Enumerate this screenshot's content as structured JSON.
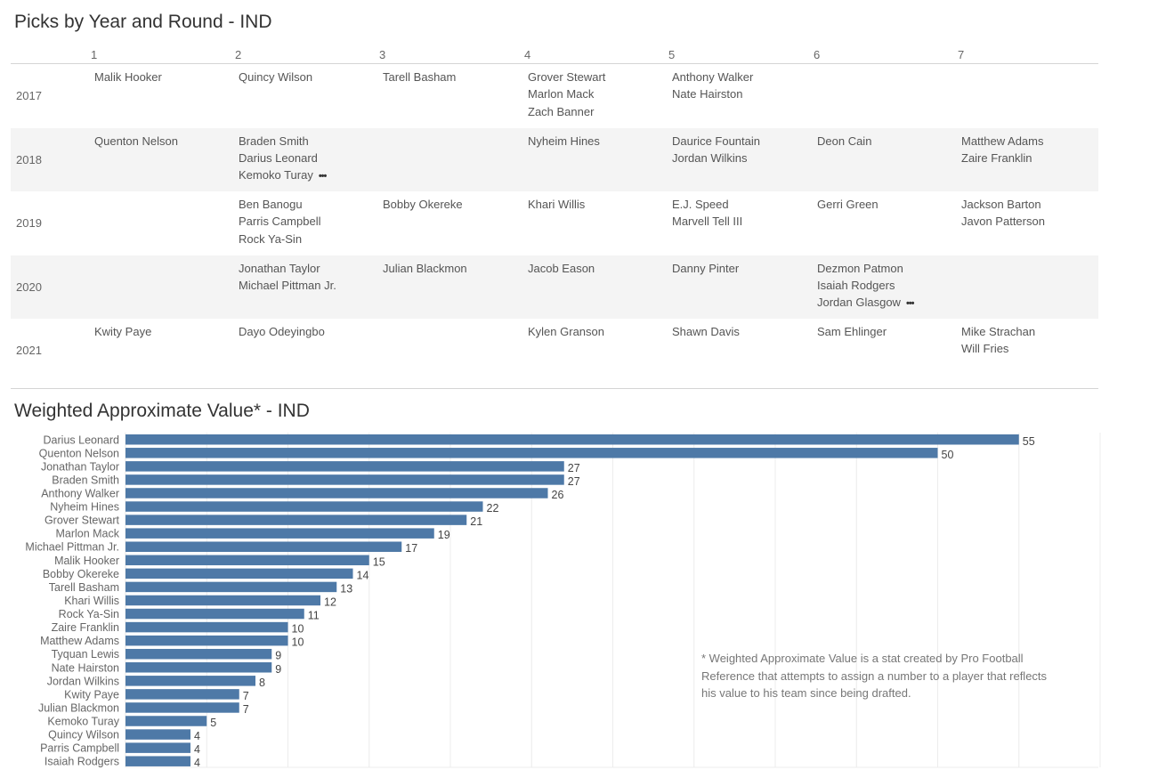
{
  "table": {
    "title": "Picks by Year and Round - IND",
    "rounds": [
      "1",
      "2",
      "3",
      "4",
      "5",
      "6",
      "7"
    ],
    "rows": [
      {
        "year": "2017",
        "cells": [
          [
            "Malik Hooker"
          ],
          [
            "Quincy Wilson"
          ],
          [
            "Tarell Basham"
          ],
          [
            "Grover Stewart",
            "Marlon Mack",
            "Zach Banner"
          ],
          [
            "Anthony Walker",
            "Nate Hairston"
          ],
          [],
          []
        ]
      },
      {
        "year": "2018",
        "cells": [
          [
            "Quenton Nelson"
          ],
          [
            "Braden Smith",
            "Darius Leonard",
            "Kemoko Turay"
          ],
          [],
          [
            "Nyheim Hines"
          ],
          [
            "Daurice Fountain",
            "Jordan Wilkins"
          ],
          [
            "Deon Cain"
          ],
          [
            "Matthew Adams",
            "Zaire Franklin"
          ]
        ],
        "more": [
          1
        ]
      },
      {
        "year": "2019",
        "cells": [
          [],
          [
            "Ben Banogu",
            "Parris Campbell",
            "Rock Ya-Sin"
          ],
          [
            "Bobby Okereke"
          ],
          [
            "Khari Willis"
          ],
          [
            "E.J. Speed",
            "Marvell Tell III"
          ],
          [
            "Gerri Green"
          ],
          [
            "Jackson Barton",
            "Javon Patterson"
          ]
        ]
      },
      {
        "year": "2020",
        "cells": [
          [],
          [
            "Jonathan Taylor",
            "Michael Pittman Jr."
          ],
          [
            "Julian Blackmon"
          ],
          [
            "Jacob Eason"
          ],
          [
            "Danny Pinter"
          ],
          [
            "Dezmon Patmon",
            "Isaiah Rodgers",
            "Jordan Glasgow"
          ],
          []
        ],
        "more": [
          5
        ]
      },
      {
        "year": "2021",
        "cells": [
          [
            "Kwity Paye"
          ],
          [
            "Dayo Odeyingbo"
          ],
          [],
          [
            "Kylen Granson"
          ],
          [
            "Shawn Davis"
          ],
          [
            "Sam Ehlinger"
          ],
          [
            "Mike Strachan",
            "Will Fries"
          ]
        ]
      }
    ]
  },
  "chart_data": {
    "type": "bar",
    "orientation": "horizontal",
    "title": "Weighted Approximate Value* - IND",
    "categories": [
      "Darius Leonard",
      "Quenton Nelson",
      "Jonathan Taylor",
      "Braden Smith",
      "Anthony Walker",
      "Nyheim Hines",
      "Grover Stewart",
      "Marlon Mack",
      "Michael Pittman Jr.",
      "Malik Hooker",
      "Bobby Okereke",
      "Tarell Basham",
      "Khari Willis",
      "Rock Ya-Sin",
      "Zaire Franklin",
      "Matthew Adams",
      "Tyquan Lewis",
      "Nate Hairston",
      "Jordan Wilkins",
      "Kwity Paye",
      "Julian Blackmon",
      "Kemoko Turay",
      "Quincy Wilson",
      "Parris Campbell",
      "Isaiah Rodgers"
    ],
    "values": [
      55,
      50,
      27,
      27,
      26,
      22,
      21,
      19,
      17,
      15,
      14,
      13,
      12,
      11,
      10,
      10,
      9,
      9,
      8,
      7,
      7,
      5,
      4,
      4,
      4
    ],
    "xlim": [
      0,
      60
    ],
    "grid": true,
    "bar_color": "#4e79a7"
  },
  "footnote": "* Weighted Approximate Value is a stat created by Pro Football Reference that attempts to assign a number to a player that reflects his value to his team since being drafted."
}
